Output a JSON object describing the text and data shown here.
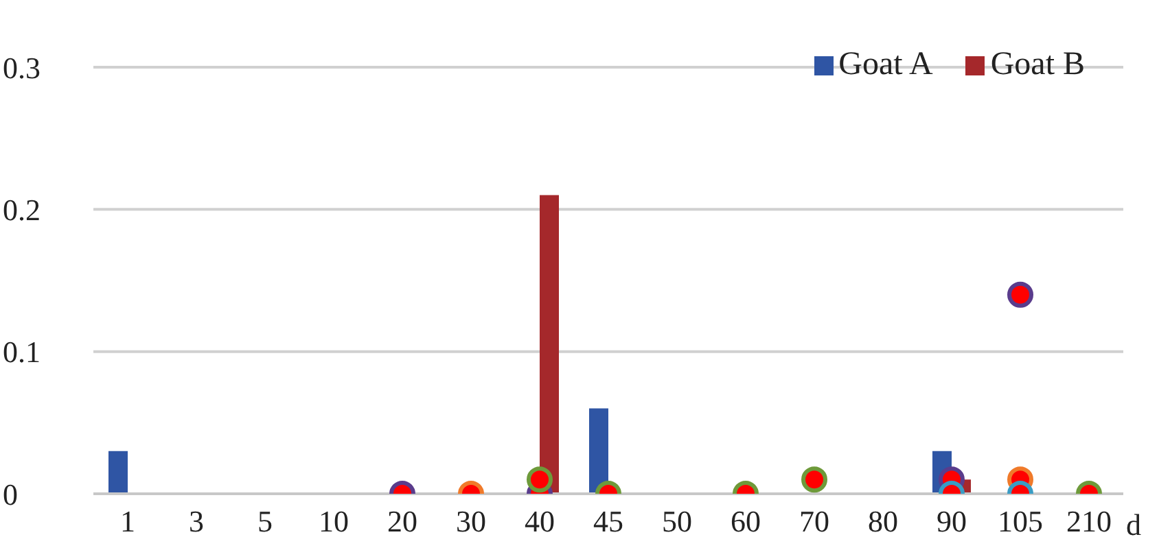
{
  "chart_data": {
    "type": "bar",
    "xlabel": "d",
    "categories": [
      "1",
      "3",
      "5",
      "10",
      "20",
      "30",
      "40",
      "45",
      "50",
      "60",
      "70",
      "80",
      "90",
      "105",
      "210"
    ],
    "series": [
      {
        "name": "Goat A",
        "color": "#2f55a4",
        "values": [
          0.03,
          0,
          0,
          0,
          0,
          0,
          0,
          0.06,
          0,
          0,
          0,
          0,
          0.03,
          0,
          0
        ]
      },
      {
        "name": "Goat B",
        "color": "#a5282b",
        "values": [
          0,
          0,
          0,
          0,
          0,
          0,
          0.21,
          0,
          0,
          0,
          0,
          0,
          0.01,
          0,
          0
        ]
      },
      {
        "type": "scatter",
        "color": "#ff0000",
        "values": [
          null,
          null,
          null,
          null,
          0,
          null,
          0,
          null,
          null,
          null,
          null,
          null,
          0.01,
          0.14,
          null
        ]
      },
      {
        "type": "scatter",
        "color": "#ff0000",
        "values": [
          null,
          null,
          null,
          null,
          null,
          0,
          null,
          null,
          null,
          null,
          null,
          null,
          null,
          0.01,
          null
        ]
      },
      {
        "type": "scatter",
        "color": "#ff0000",
        "values": [
          null,
          null,
          null,
          null,
          null,
          null,
          0.01,
          0,
          null,
          0,
          0.01,
          null,
          null,
          null,
          0
        ]
      },
      {
        "type": "scatter",
        "color": "#ff0000",
        "values": [
          null,
          null,
          null,
          null,
          null,
          null,
          null,
          null,
          null,
          null,
          null,
          null,
          0,
          0,
          null
        ]
      }
    ],
    "ylim": [
      0,
      0.3
    ],
    "yticks": [
      0,
      0.1,
      0.2,
      0.3
    ],
    "grid": "y",
    "legend": "top right",
    "marker": "circle"
  }
}
